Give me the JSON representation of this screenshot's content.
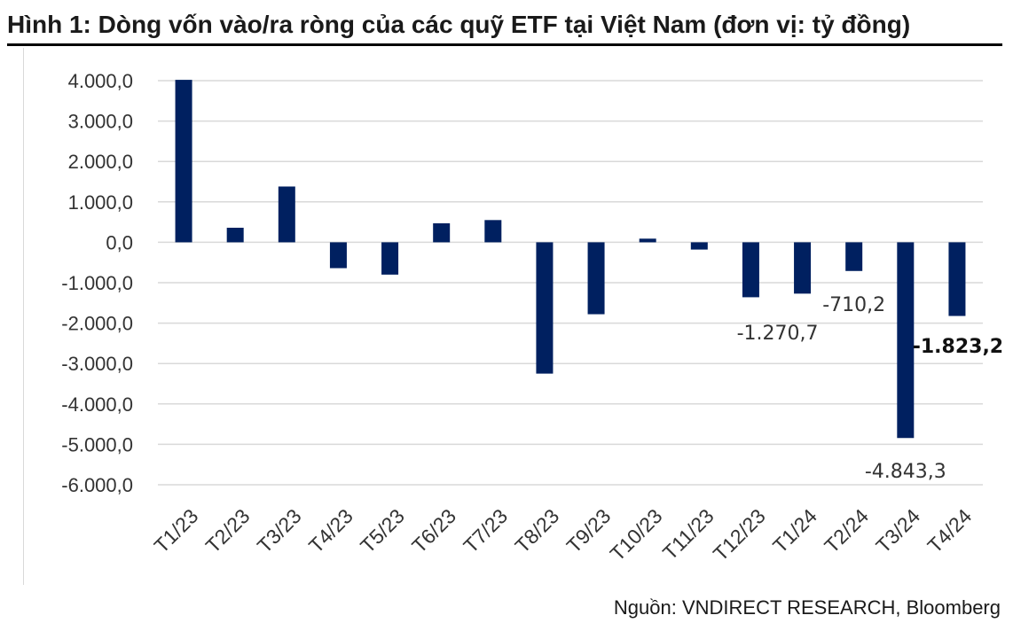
{
  "figure": {
    "title": "Hình 1: Dòng vốn vào/ra ròng của các quỹ ETF tại Việt Nam (đơn vị: tỷ đồng)",
    "source": "Nguồn: VNDIRECT RESEARCH, Bloomberg"
  },
  "colors": {
    "bar": "#002060",
    "grid": "#d9d9d9",
    "axis_text": "#333333"
  },
  "chart_data": {
    "type": "bar",
    "title": "Hình 1: Dòng vốn vào/ra ròng của các quỹ ETF tại Việt Nam (đơn vị: tỷ đồng)",
    "xlabel": "",
    "ylabel": "",
    "ylim": [
      -6000,
      4000
    ],
    "yticks": [
      4000,
      3000,
      2000,
      1000,
      0,
      -1000,
      -2000,
      -3000,
      -4000,
      -5000,
      -6000
    ],
    "ytick_labels": [
      "4.000,0",
      "3.000,0",
      "2.000,0",
      "1.000,0",
      "0,0",
      "-1.000,0",
      "-2.000,0",
      "-3.000,0",
      "-4.000,0",
      "-5.000,0",
      "-6.000,0"
    ],
    "grid": true,
    "legend": "none",
    "categories": [
      "T1/23",
      "T2/23",
      "T3/23",
      "T4/23",
      "T5/23",
      "T6/23",
      "T7/23",
      "T8/23",
      "T9/23",
      "T10/23",
      "T11/23",
      "T12/23",
      "T1/24",
      "T2/24",
      "T3/24",
      "T4/24"
    ],
    "values": [
      4020,
      360,
      1380,
      -640,
      -800,
      470,
      550,
      -3250,
      -1780,
      90,
      -180,
      -1360,
      -1270.7,
      -710.2,
      -4843.3,
      -1823.2
    ],
    "data_labels": [
      {
        "category": "T1/24",
        "text": "-1.270,7",
        "bold": false
      },
      {
        "category": "T2/24",
        "text": "-710,2",
        "bold": false
      },
      {
        "category": "T3/24",
        "text": "-4.843,3",
        "bold": false
      },
      {
        "category": "T4/24",
        "text": "-1.823,2",
        "bold": true
      }
    ]
  }
}
